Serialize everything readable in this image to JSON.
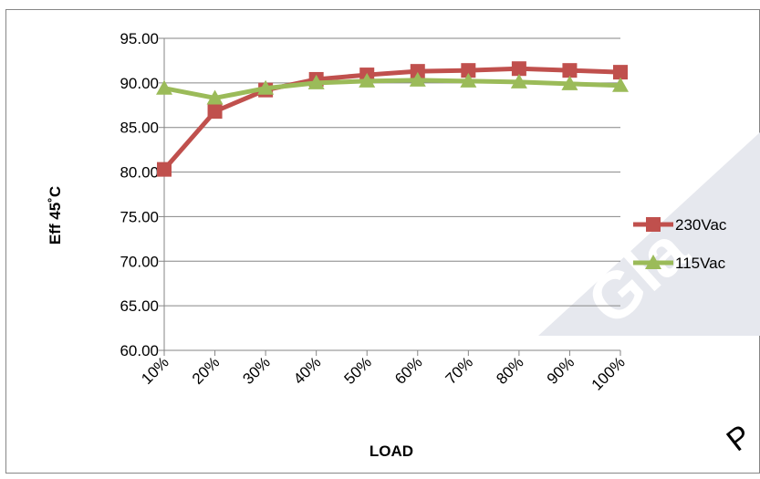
{
  "chart_data": {
    "type": "line",
    "categories": [
      "10%",
      "20%",
      "30%",
      "40%",
      "50%",
      "60%",
      "70%",
      "80%",
      "90%",
      "100%"
    ],
    "series": [
      {
        "name": "230Vac",
        "color": "#c0504d",
        "marker": "square",
        "values": [
          80.3,
          86.8,
          89.2,
          90.4,
          90.9,
          91.3,
          91.4,
          91.6,
          91.4,
          91.2
        ]
      },
      {
        "name": "115Vac",
        "color": "#9bbb59",
        "marker": "triangle",
        "values": [
          89.4,
          88.3,
          89.4,
          90.0,
          90.2,
          90.3,
          90.2,
          90.1,
          89.9,
          89.7
        ]
      }
    ],
    "xlabel": "LOAD",
    "ylabel": "Eff  45˚C",
    "ylim": [
      60,
      95
    ],
    "y_ticks": [
      "60.00",
      "65.00",
      "70.00",
      "75.00",
      "80.00",
      "85.00",
      "90.00",
      "95.00"
    ],
    "grid": true,
    "legend_position": "right"
  },
  "watermark": {
    "text": "Gla",
    "small_text": "P",
    "color": "#e6e8ee"
  }
}
